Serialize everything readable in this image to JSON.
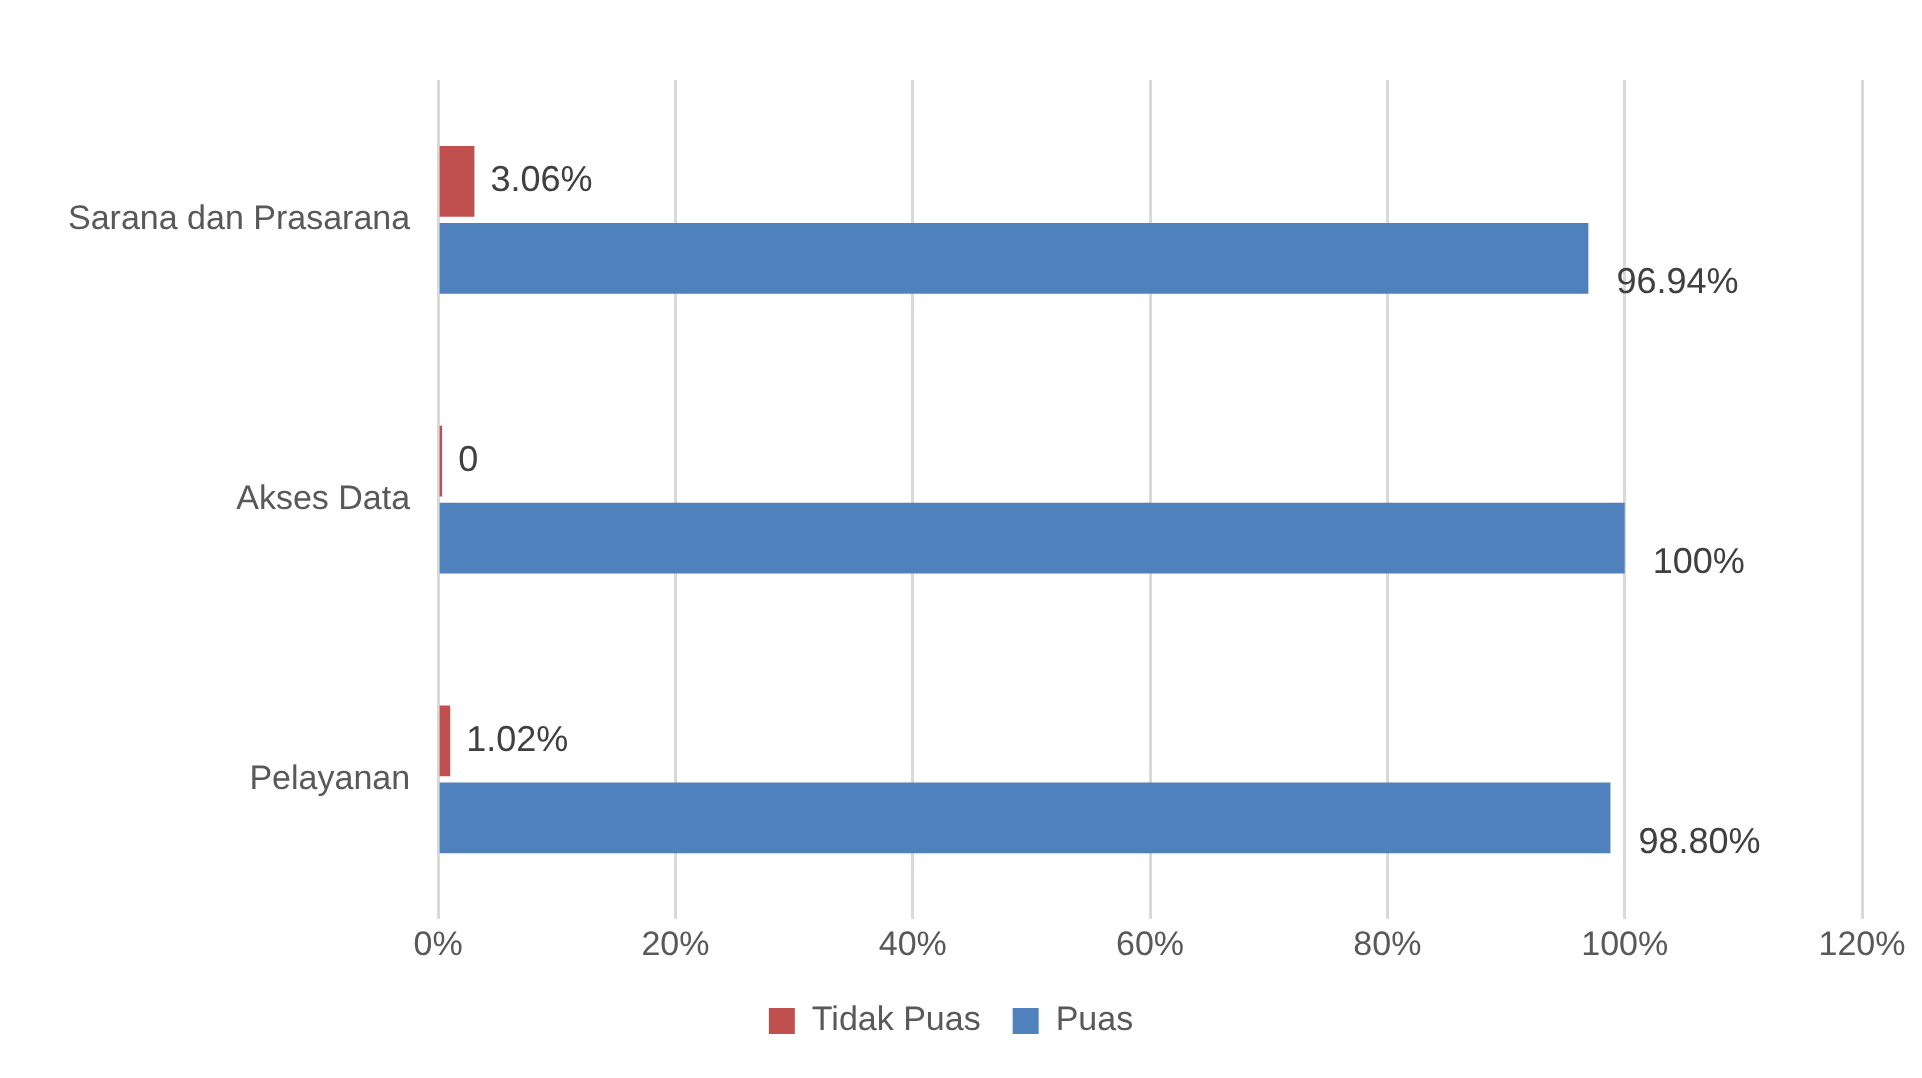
{
  "chart_data": {
    "type": "bar",
    "orientation": "horizontal",
    "categories": [
      "Sarana dan Prasarana",
      "Akses Data",
      "Pelayanan"
    ],
    "series": [
      {
        "name": "Tidak Puas",
        "color": "#c0504d",
        "values": [
          3.06,
          0,
          1.02
        ],
        "value_labels": [
          "3.06%",
          "0",
          "1.02%"
        ]
      },
      {
        "name": "Puas",
        "color": "#4f81bd",
        "values": [
          96.94,
          100,
          98.8
        ],
        "value_labels": [
          "96.94%",
          "100%",
          "98.80%"
        ]
      }
    ],
    "xlim": [
      0,
      120
    ],
    "xticks": [
      {
        "value": 0,
        "label": "0%"
      },
      {
        "value": 20,
        "label": "20%"
      },
      {
        "value": 40,
        "label": "40%"
      },
      {
        "value": 60,
        "label": "60%"
      },
      {
        "value": 80,
        "label": "80%"
      },
      {
        "value": 100,
        "label": "100%"
      },
      {
        "value": 120,
        "label": "120%"
      }
    ],
    "grid": "x",
    "legend": "bottom"
  }
}
